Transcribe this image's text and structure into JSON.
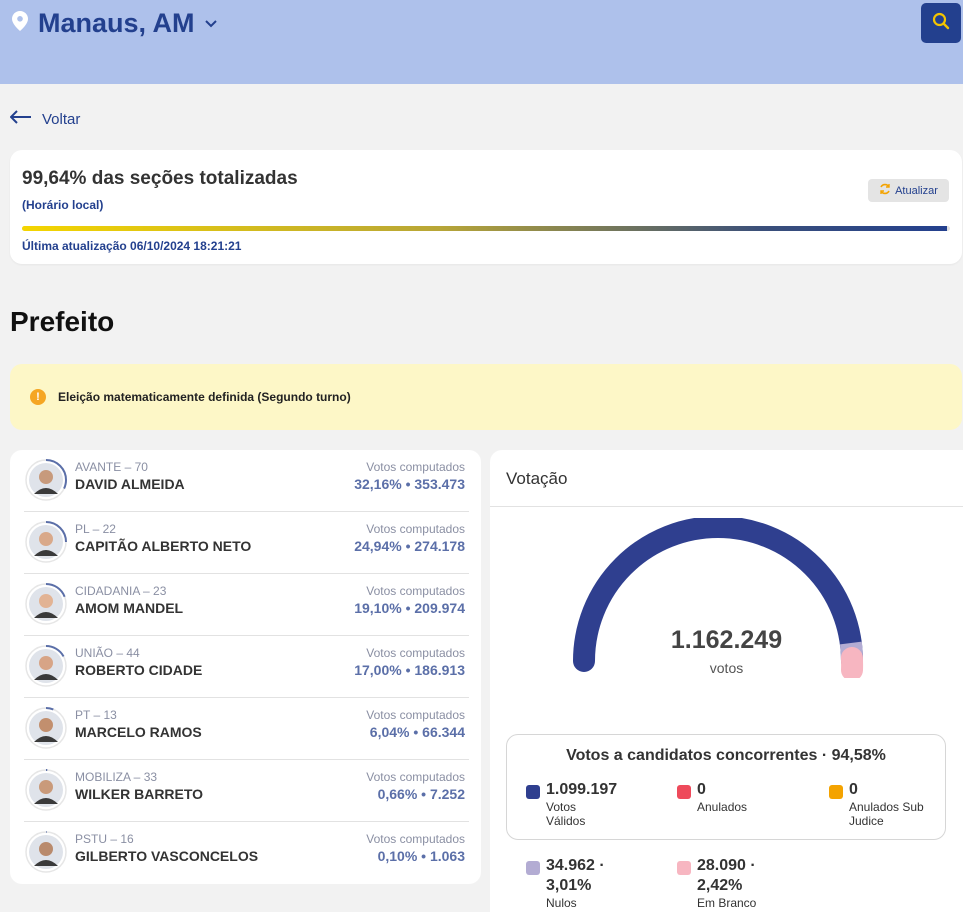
{
  "header": {
    "location": "Manaus, AM",
    "accent": "#23408e",
    "background": "#aec1eb"
  },
  "nav": {
    "back_label": "Voltar"
  },
  "status": {
    "title": "99,64% das seções totalizadas",
    "subtitle": "(Horário local)",
    "refresh_label": "Atualizar",
    "progress_percent": 99.64,
    "last_update": "Última atualização 06/10/2024 18:21:21"
  },
  "section_title": "Prefeito",
  "alert": {
    "text": "Eleição matematicamente definida (Segundo turno)",
    "icon": "info-icon"
  },
  "candidates": [
    {
      "party": "AVANTE – 70",
      "name": "DAVID ALMEIDA",
      "votes_label": "Votos computados",
      "votes": "32,16% • 353.473"
    },
    {
      "party": "PL – 22",
      "name": "CAPITÃO ALBERTO NETO",
      "votes_label": "Votos computados",
      "votes": "24,94% • 274.178"
    },
    {
      "party": "CIDADANIA – 23",
      "name": "AMOM MANDEL",
      "votes_label": "Votos computados",
      "votes": "19,10% • 209.974"
    },
    {
      "party": "UNIÃO – 44",
      "name": "ROBERTO CIDADE",
      "votes_label": "Votos computados",
      "votes": "17,00% • 186.913"
    },
    {
      "party": "PT – 13",
      "name": "MARCELO RAMOS",
      "votes_label": "Votos computados",
      "votes": "6,04% • 66.344"
    },
    {
      "party": "MOBILIZA – 33",
      "name": "WILKER BARRETO",
      "votes_label": "Votos computados",
      "votes": "0,66% • 7.252"
    },
    {
      "party": "PSTU – 16",
      "name": "GILBERTO VASCONCELOS",
      "votes_label": "Votos computados",
      "votes": "0,10% • 1.063"
    }
  ],
  "voting": {
    "title": "Votação",
    "total": "1.162.249",
    "unit": "votos",
    "competing_title": "Votos a candidatos concorrentes · 94,58%",
    "legend": [
      {
        "value": "1.099.197",
        "label": "Votos Válidos",
        "color": "#2f3f8f"
      },
      {
        "value": "0",
        "label": "Anulados",
        "color": "#ee4a5b"
      },
      {
        "value": "0",
        "label": "Anulados Sub Judice",
        "color": "#f4a300"
      },
      {
        "value": "34.962 · 3,01%",
        "label": "Nulos",
        "color": "#b3acd3"
      },
      {
        "value": "28.090 · 2,42%",
        "label": "Em Branco",
        "color": "#f7b6c1"
      }
    ]
  }
}
